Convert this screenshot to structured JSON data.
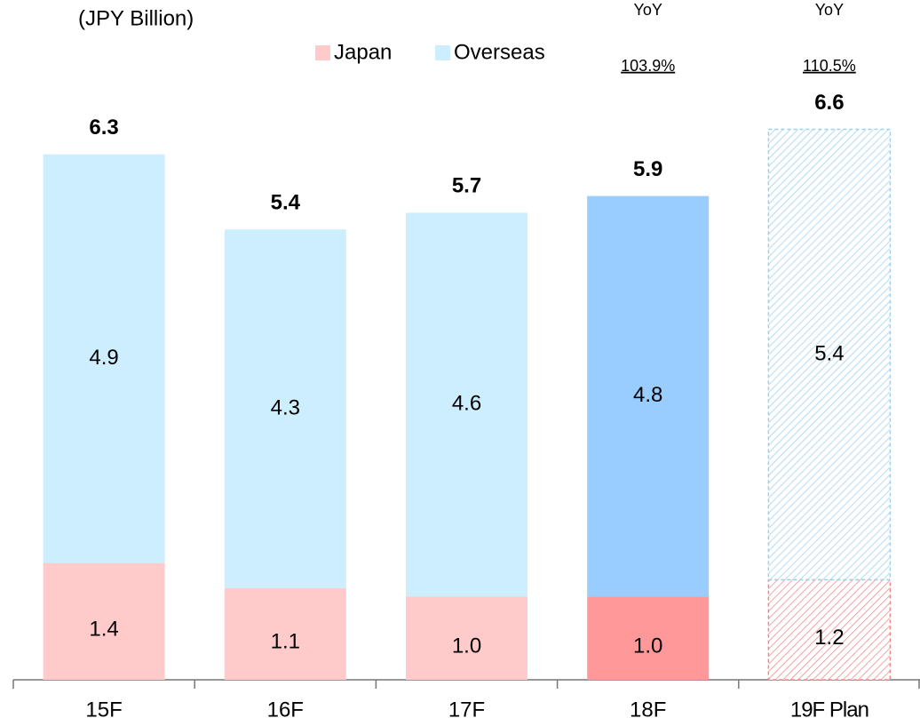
{
  "chart_data": {
    "type": "stacked_bar",
    "unit_label": "(JPY Billion)",
    "categories": [
      "15F",
      "16F",
      "17F",
      "18F",
      "19F Plan"
    ],
    "series": [
      {
        "name": "Japan",
        "color": "#ffcaca",
        "colors": [
          "#ffcaca",
          "#ffcaca",
          "#ffcaca",
          "#ff9999",
          "#ee8888"
        ],
        "values": [
          1.4,
          1.1,
          1.0,
          1.0,
          1.2
        ],
        "value_labels": [
          "1.4",
          "1.1",
          "1.0",
          "1.0",
          "1.2"
        ]
      },
      {
        "name": "Overseas",
        "color": "#cdeeff",
        "colors": [
          "#cdeeff",
          "#cdeeff",
          "#cdeeff",
          "#99ccff",
          "#9dcfee"
        ],
        "values": [
          4.9,
          4.3,
          4.6,
          4.8,
          5.4
        ],
        "value_labels": [
          "4.9",
          "4.3",
          "4.6",
          "4.8",
          "5.4"
        ]
      }
    ],
    "totals": [
      6.3,
      5.4,
      5.7,
      5.9,
      6.6
    ],
    "hatched": [
      false,
      false,
      false,
      false,
      true
    ],
    "annotations": [
      {
        "label": "YoY",
        "value": "103.9%"
      },
      {
        "label": "YoY",
        "value": "110.5%"
      }
    ],
    "ylim": [
      0,
      7
    ]
  }
}
